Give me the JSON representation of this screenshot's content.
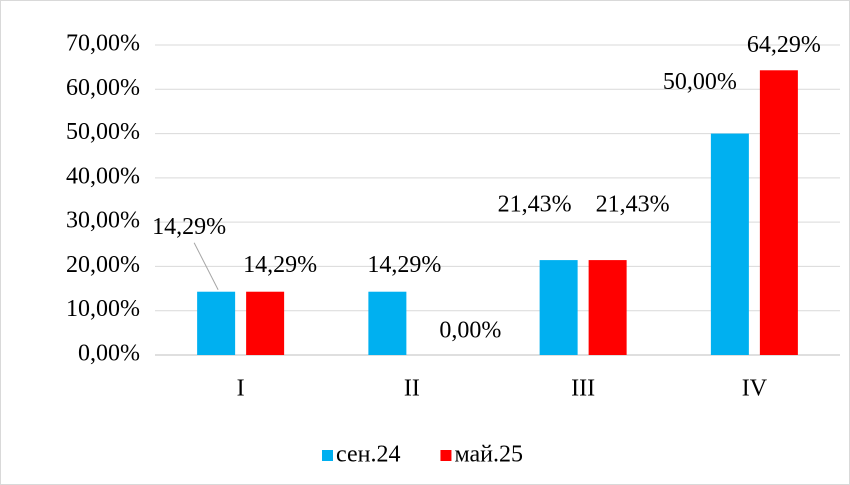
{
  "chart_data": {
    "type": "bar",
    "categories": [
      "I",
      "II",
      "III",
      "IV"
    ],
    "series": [
      {
        "name": "сен.24",
        "color": "#00b0f0",
        "values": [
          14.29,
          14.29,
          21.43,
          50
        ],
        "value_labels": [
          "14,29%",
          "14,29%",
          "21,43%",
          "50,00%"
        ]
      },
      {
        "name": "май.25",
        "color": "#ff0000",
        "values": [
          14.29,
          0,
          21.43,
          64.29
        ],
        "value_labels": [
          "14,29%",
          "0,00%",
          "21,43%",
          "64,29%"
        ]
      }
    ],
    "ylim": [
      0,
      70
    ],
    "yticks": [
      {
        "value": 0,
        "label": "0,00%"
      },
      {
        "value": 10,
        "label": "10,00%"
      },
      {
        "value": 20,
        "label": "20,00%"
      },
      {
        "value": 30,
        "label": "30,00%"
      },
      {
        "value": 40,
        "label": "40,00%"
      },
      {
        "value": 50,
        "label": "50,00%"
      },
      {
        "value": 60,
        "label": "60,00%"
      },
      {
        "value": 70,
        "label": "70,00%"
      }
    ],
    "grid": true,
    "legend": "bottom"
  }
}
